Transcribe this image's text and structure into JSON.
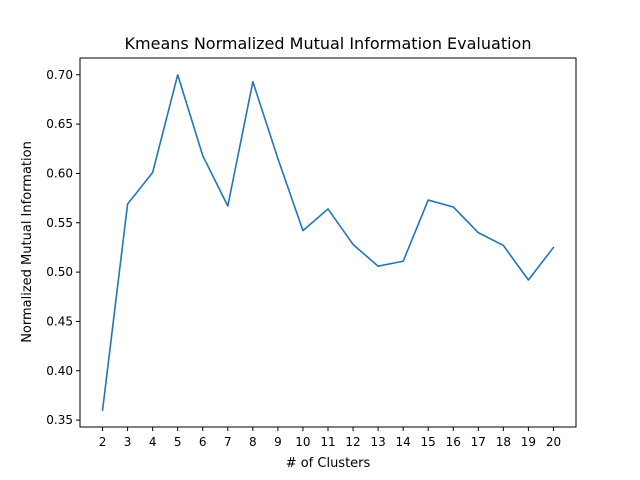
{
  "colors": {
    "series": "#1f77b4"
  },
  "chart_data": {
    "type": "line",
    "title": "Kmeans Normalized Mutual Information Evaluation",
    "xlabel": "# of Clusters",
    "ylabel": "Normalized Mutual Information",
    "x": [
      2,
      3,
      4,
      5,
      6,
      7,
      8,
      9,
      10,
      11,
      12,
      13,
      14,
      15,
      16,
      17,
      18,
      19,
      20
    ],
    "series": [
      {
        "values": [
          0.36,
          0.569,
          0.601,
          0.7,
          0.618,
          0.567,
          0.693,
          0.615,
          0.542,
          0.564,
          0.528,
          0.506,
          0.511,
          0.573,
          0.566,
          0.54,
          0.527,
          0.492,
          0.525
        ]
      }
    ],
    "xlim": [
      1.1,
      20.9
    ],
    "ylim": [
      0.343,
      0.717
    ],
    "xticks": [
      "2",
      "3",
      "4",
      "5",
      "6",
      "7",
      "8",
      "9",
      "10",
      "11",
      "12",
      "13",
      "14",
      "15",
      "16",
      "17",
      "18",
      "19",
      "20"
    ],
    "yticks": [
      "0.35",
      "0.40",
      "0.45",
      "0.50",
      "0.55",
      "0.60",
      "0.65",
      "0.70"
    ],
    "grid": false,
    "legend": "none"
  }
}
